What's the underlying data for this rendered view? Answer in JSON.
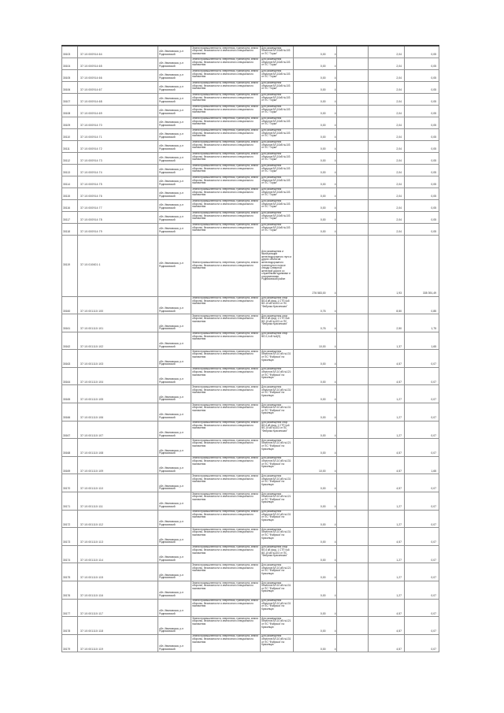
{
  "page": {
    "background": "#ffffff",
    "grid_color": "#8f8f8f",
    "outer_border_color": "#4e4e4e",
    "text_color": "#2a2a2a"
  },
  "table": {
    "shared": {
      "location": "обл. Ивановская,  р-н Родниковский",
      "category": "Земли промышленности, энергетики, транспорта,  земли обороны, безопасности и земли иного специального назначения",
      "area_unit": "4"
    },
    "purposes": {
      "gorki": "Для размещения объектов ВЛ-10кВ №103 от ПС \"Горки\"",
      "rail": "Для размещения и эксплуатации железнодорожного пути и других объектов железнодорожного транспорта в полосе отвода Северной железной дороги со служебными зданиями и сооружениями, Родниковский район",
      "opory6": "Для размещения опор ВЛ-6 кВ фид. 1 СТП №6 ВЛ-10 кВ №103 от ПС \"Фабрика Красинская\"",
      "opory04": "Для размещения опор ВЛ-0,4 кВ №6(9)",
      "fab131": "Для размещения объектов ВЛ-10 кВ №131 от ПС \"Фабрика\" на Красинцах",
      "fab121": "Для размещения объектов ВЛ-10 кВ №121 от ПС \"Фабрика\" на Красинцах"
    },
    "rows": [
      {
        "type": "top",
        "id": "30103",
        "cad": "37:10:000914:64",
        "pk": "gorki",
        "area": "0,00",
        "v1": "2,04",
        "v2": "0,05"
      },
      {
        "type": "top",
        "id": "30104",
        "cad": "37:10:000914:65",
        "pk": "gorki",
        "area": "0,00",
        "v1": "2,04",
        "v2": "0,05"
      },
      {
        "type": "top",
        "id": "30105",
        "cad": "37:10:000914:66",
        "pk": "gorki",
        "area": "0,00",
        "v1": "2,04",
        "v2": "0,05"
      },
      {
        "type": "top",
        "id": "30106",
        "cad": "37:10:000914:67",
        "pk": "gorki",
        "area": "0,00",
        "v1": "2,04",
        "v2": "0,05"
      },
      {
        "type": "top",
        "id": "30107",
        "cad": "37:10:000914:68",
        "pk": "gorki",
        "area": "0,00",
        "v1": "2,04",
        "v2": "0,05"
      },
      {
        "type": "top",
        "id": "30108",
        "cad": "37:10:000914:69",
        "pk": "gorki",
        "area": "0,00",
        "v1": "2,04",
        "v2": "0,05"
      },
      {
        "type": "top",
        "id": "30109",
        "cad": "37:10:000914:70",
        "pk": "gorki",
        "area": "0,00",
        "v1": "2,04",
        "v2": "0,05"
      },
      {
        "type": "top",
        "id": "30110",
        "cad": "37:10:000914:71",
        "pk": "gorki",
        "area": "0,00",
        "v1": "2,04",
        "v2": "0,05"
      },
      {
        "type": "top",
        "id": "30111",
        "cad": "37:10:000914:72",
        "pk": "gorki",
        "area": "0,00",
        "v1": "2,04",
        "v2": "0,05"
      },
      {
        "type": "top",
        "id": "30112",
        "cad": "37:10:000914:73",
        "pk": "gorki",
        "area": "0,00",
        "v1": "2,04",
        "v2": "0,05"
      },
      {
        "type": "top",
        "id": "30113",
        "cad": "37:10:000914:74",
        "pk": "gorki",
        "area": "0,00",
        "v1": "2,04",
        "v2": "0,05"
      },
      {
        "type": "top",
        "id": "30114",
        "cad": "37:10:000914:75",
        "pk": "gorki",
        "area": "0,00",
        "v1": "2,04",
        "v2": "0,05"
      },
      {
        "type": "top",
        "id": "30115",
        "cad": "37:10:000914:76",
        "pk": "gorki",
        "area": "0,00",
        "v1": "2,04",
        "v2": "0,05"
      },
      {
        "type": "top",
        "id": "30116",
        "cad": "37:10:000914:77",
        "pk": "gorki",
        "area": "0,00",
        "v1": "2,04",
        "v2": "0,05"
      },
      {
        "type": "top",
        "id": "30117",
        "cad": "37:10:000914:78",
        "pk": "gorki",
        "area": "0,00",
        "v1": "2,04",
        "v2": "0,05"
      },
      {
        "type": "top",
        "id": "30118",
        "cad": "37:10:000914:79",
        "pk": "gorki",
        "area": "0,00",
        "v1": "2,04",
        "v2": "0,05"
      },
      {
        "type": "big",
        "id": "30119",
        "cad": "37:10:010601:1",
        "pk": "rail",
        "area": "276 583,00",
        "v1": "1,93",
        "v2": "335 391,49"
      },
      {
        "type": "bot",
        "id": "30160",
        "cad": "37:10:001110:100",
        "pk": "opory6",
        "area": "0,76",
        "v1": "8,50",
        "v2": "0,85"
      },
      {
        "type": "bot",
        "id": "30161",
        "cad": "37:10:001110:101",
        "pk": "opory6",
        "area": "0,76",
        "v1": "2,50",
        "v2": "1,75"
      },
      {
        "type": "bot",
        "id": "30162",
        "cad": "37:10:001110:102",
        "pk": "opory04",
        "area": "10,00",
        "v1": "1,37",
        "v2": "1,65"
      },
      {
        "type": "bot",
        "id": "30163",
        "cad": "37:10:001110:103",
        "pk": "fab131",
        "area": "0,00",
        "v1": "4,57",
        "v2": "0,07"
      },
      {
        "type": "bot",
        "id": "30164",
        "cad": "37:10:001110:104",
        "pk": "fab121",
        "area": "0,00",
        "v1": "4,57",
        "v2": "0,07"
      },
      {
        "type": "bot",
        "id": "30165",
        "cad": "37:10:001110:105",
        "pk": "fab131",
        "area": "0,00",
        "v1": "1,27",
        "v2": "0,07"
      },
      {
        "type": "bot",
        "id": "30166",
        "cad": "37:10:001110:106",
        "pk": "fab131",
        "area": "0,00",
        "v1": "1,27",
        "v2": "0,07"
      },
      {
        "type": "bot",
        "id": "30167",
        "cad": "37:10:001110:107",
        "pk": "opory6",
        "area": "0,00",
        "v1": "1,27",
        "v2": "0,07"
      },
      {
        "type": "bot",
        "id": "30168",
        "cad": "37:10:001110:108",
        "pk": "fab121",
        "area": "0,00",
        "v1": "4,57",
        "v2": "0,07"
      },
      {
        "type": "bot",
        "id": "30169",
        "cad": "37:10:001110:109",
        "pk": "fab131",
        "area": "10,00",
        "v1": "4,57",
        "v2": "1,65"
      },
      {
        "type": "bot",
        "id": "30170",
        "cad": "37:10:001110:110",
        "pk": "fab131",
        "area": "0,00",
        "v1": "4,57",
        "v2": "0,07"
      },
      {
        "type": "bot",
        "id": "30171",
        "cad": "37:10:001110:111",
        "pk": "fab121",
        "area": "0,00",
        "v1": "1,27",
        "v2": "0,07"
      },
      {
        "type": "bot",
        "id": "30172",
        "cad": "37:10:001110:112",
        "pk": "fab131",
        "area": "0,00",
        "v1": "1,27",
        "v2": "0,07"
      },
      {
        "type": "bot",
        "id": "30173",
        "cad": "37:10:001110:113",
        "pk": "fab131",
        "area": "0,00",
        "v1": "4,57",
        "v2": "0,07"
      },
      {
        "type": "bot",
        "id": "30174",
        "cad": "37:10:001110:114",
        "pk": "opory6",
        "area": "0,00",
        "v1": "1,27",
        "v2": "0,07"
      },
      {
        "type": "bot",
        "id": "30175",
        "cad": "37:10:001110:115",
        "pk": "fab121",
        "area": "0,00",
        "v1": "1,27",
        "v2": "0,07"
      },
      {
        "type": "bot",
        "id": "30176",
        "cad": "37:10:001110:116",
        "pk": "fab131",
        "area": "0,00",
        "v1": "1,27",
        "v2": "0,07"
      },
      {
        "type": "bot",
        "id": "30177",
        "cad": "37:10:001110:117",
        "pk": "fab131",
        "area": "0,00",
        "v1": "4,57",
        "v2": "0,07"
      },
      {
        "type": "bot",
        "id": "30178",
        "cad": "37:10:001110:118",
        "pk": "fab121",
        "area": "0,00",
        "v1": "4,57",
        "v2": "0,07"
      },
      {
        "type": "bot",
        "id": "30179",
        "cad": "37:10:001110:119",
        "pk": "fab131",
        "area": "0,00",
        "v1": "4,57",
        "v2": "0,07"
      }
    ]
  }
}
